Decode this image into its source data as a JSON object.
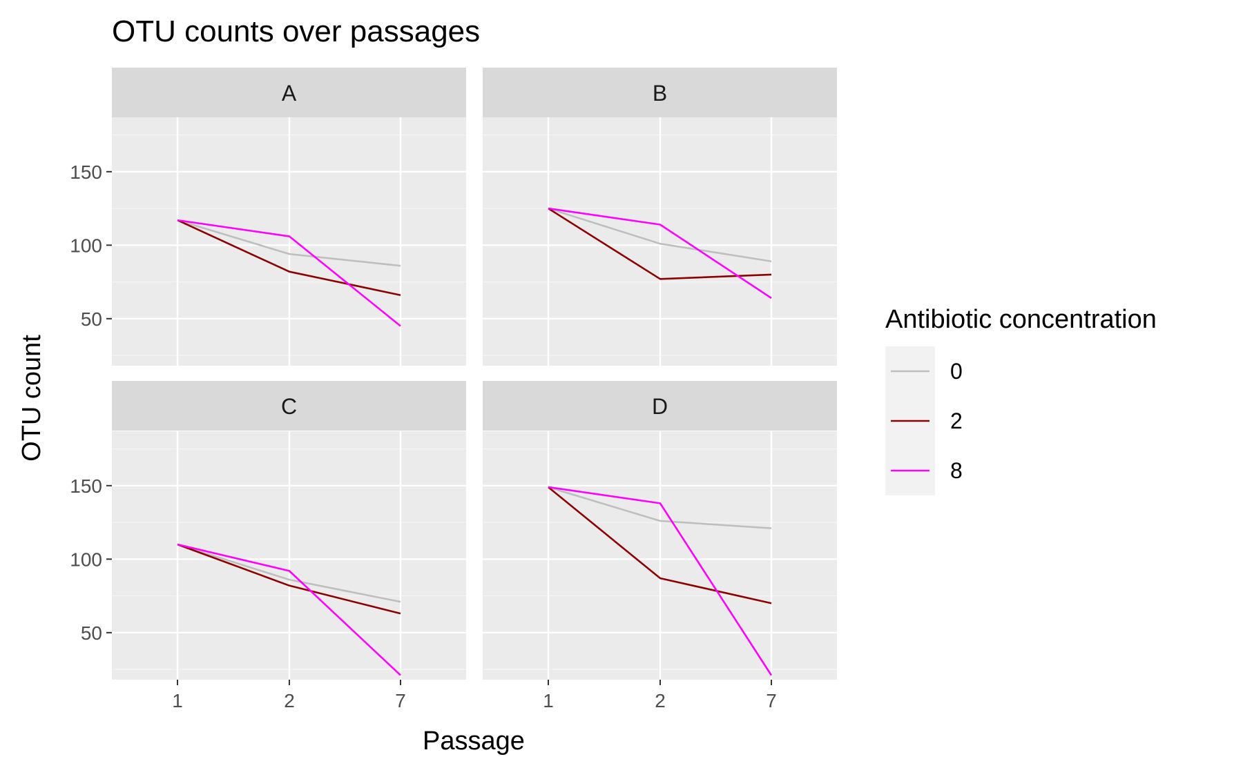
{
  "chart_data": {
    "type": "line",
    "title": "OTU counts over passages",
    "xlabel": "Passage",
    "ylabel": "OTU count",
    "x": [
      "1",
      "2",
      "7"
    ],
    "y_ticks": [
      50,
      100,
      150
    ],
    "ylim": [
      18,
      187
    ],
    "grid": true,
    "legend": {
      "title": "Antibiotic concentration",
      "placement": "right",
      "entries": [
        {
          "label": "0",
          "color": "#BEBEBE"
        },
        {
          "label": "2",
          "color": "#8B0000"
        },
        {
          "label": "8",
          "color": "#FF00FF"
        }
      ]
    },
    "facets": [
      {
        "label": "A",
        "series": [
          {
            "name": "0",
            "values": [
              117,
              94,
              86
            ]
          },
          {
            "name": "2",
            "values": [
              117,
              82,
              66
            ]
          },
          {
            "name": "8",
            "values": [
              117,
              106,
              45
            ]
          }
        ]
      },
      {
        "label": "B",
        "series": [
          {
            "name": "0",
            "values": [
              125,
              101,
              89
            ]
          },
          {
            "name": "2",
            "values": [
              125,
              77,
              80
            ]
          },
          {
            "name": "8",
            "values": [
              125,
              114,
              64
            ]
          }
        ]
      },
      {
        "label": "C",
        "series": [
          {
            "name": "0",
            "values": [
              110,
              86,
              71
            ]
          },
          {
            "name": "2",
            "values": [
              110,
              82,
              63
            ]
          },
          {
            "name": "8",
            "values": [
              110,
              92,
              21
            ]
          }
        ]
      },
      {
        "label": "D",
        "series": [
          {
            "name": "0",
            "values": [
              149,
              126,
              121
            ]
          },
          {
            "name": "2",
            "values": [
              149,
              87,
              70
            ]
          },
          {
            "name": "8",
            "values": [
              149,
              138,
              21
            ]
          }
        ]
      }
    ]
  }
}
